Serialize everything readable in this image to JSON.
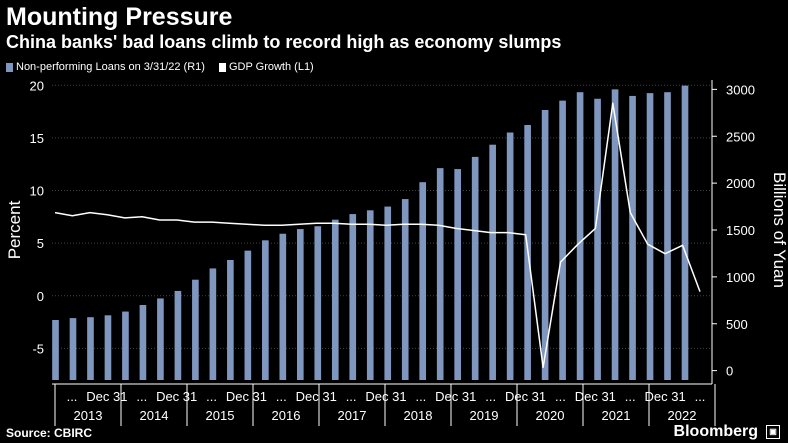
{
  "header": {
    "title": "Mounting Pressure",
    "subtitle": "China banks' bad loans climb to record high as economy slumps"
  },
  "footer": {
    "source": "Source: CBIRC",
    "brand": "Bloomberg",
    "brand_icon": "bloomberg-logo-icon"
  },
  "colors": {
    "background": "#000000",
    "bars": "#7f96bf",
    "line": "#ffffff",
    "grid": "#444444",
    "text": "#ffffff"
  },
  "chart_data": {
    "type": "bar",
    "title": "Mounting Pressure",
    "subtitle": "China banks' bad loans climb to record high as economy slumps",
    "legend_position": "top-left",
    "grid": true,
    "y_left": {
      "label": "Percent",
      "range": [
        -8,
        20.5
      ],
      "ticks": [
        "-5",
        "0",
        "5",
        "10",
        "15",
        "20"
      ]
    },
    "y_right": {
      "label": "Billions of Yuan",
      "range": [
        -100,
        3100
      ],
      "ticks": [
        "0",
        "500",
        "1000",
        "1500",
        "2000",
        "2500",
        "3000"
      ]
    },
    "x_tick_labels": [
      "...",
      "Dec 31",
      "...",
      "Dec 31",
      "...",
      "Dec 31",
      "...",
      "Dec 31",
      "...",
      "Dec 31",
      "...",
      "Dec 31",
      "...",
      "Dec 31",
      "...",
      "Dec 31",
      "...",
      "Dec 31",
      "..."
    ],
    "years": [
      "2013",
      "2014",
      "2015",
      "2016",
      "2017",
      "2018",
      "2019",
      "2020",
      "2021",
      "2022"
    ],
    "series": [
      {
        "name": "Non-performing Loans on 3/31/22 (R1)",
        "kind": "bar",
        "axis": "right",
        "values": [
          540,
          560,
          570,
          590,
          630,
          700,
          770,
          850,
          970,
          1090,
          1180,
          1280,
          1390,
          1460,
          1510,
          1540,
          1610,
          1670,
          1710,
          1750,
          1830,
          2010,
          2160,
          2150,
          2280,
          2410,
          2540,
          2620,
          2780,
          2880,
          2970,
          2900,
          3000,
          2930,
          2960,
          2970,
          3040
        ]
      },
      {
        "name": "GDP Growth (L1)",
        "kind": "line",
        "axis": "left",
        "values": [
          7.9,
          7.6,
          7.9,
          7.7,
          7.4,
          7.5,
          7.2,
          7.2,
          7.0,
          7.0,
          6.9,
          6.8,
          6.7,
          6.7,
          6.8,
          6.9,
          6.9,
          6.8,
          6.8,
          6.7,
          6.8,
          6.8,
          6.7,
          6.4,
          6.2,
          6.0,
          6.0,
          5.8,
          -6.8,
          3.2,
          4.9,
          6.4,
          18.3,
          7.9,
          4.9,
          4.0,
          4.8,
          0.4
        ]
      }
    ]
  }
}
